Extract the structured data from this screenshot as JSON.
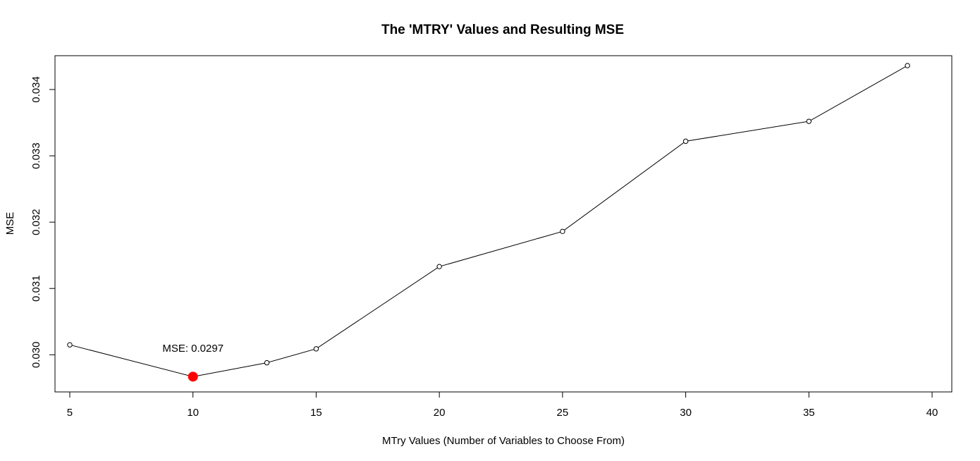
{
  "chart_data": {
    "type": "line",
    "title": "The 'MTRY' Values and Resulting MSE",
    "xlabel": "MTry Values (Number of Variables to Choose From)",
    "ylabel": "MSE",
    "x": [
      5,
      10,
      13,
      15,
      20,
      25,
      30,
      35,
      39
    ],
    "y": [
      0.03015,
      0.02967,
      0.02988,
      0.03009,
      0.03133,
      0.03186,
      0.03322,
      0.03352,
      0.03436
    ],
    "xlim": [
      4.4,
      40.8
    ],
    "ylim": [
      0.02944,
      0.03451
    ],
    "xticks": [
      5,
      10,
      15,
      20,
      25,
      30,
      35,
      40
    ],
    "xtick_labels": [
      "5",
      "10",
      "15",
      "20",
      "25",
      "30",
      "35",
      "40"
    ],
    "yticks": [
      0.03,
      0.031,
      0.032,
      0.033,
      0.034
    ],
    "ytick_labels": [
      "0.030",
      "0.031",
      "0.032",
      "0.033",
      "0.034"
    ],
    "grid": false,
    "highlight": {
      "x": 10,
      "y": 0.02967,
      "color": "#ff0000"
    },
    "annotation": {
      "text": "MSE: 0.0297",
      "x": 10,
      "y": 0.0301
    },
    "line_color": "#000000"
  }
}
